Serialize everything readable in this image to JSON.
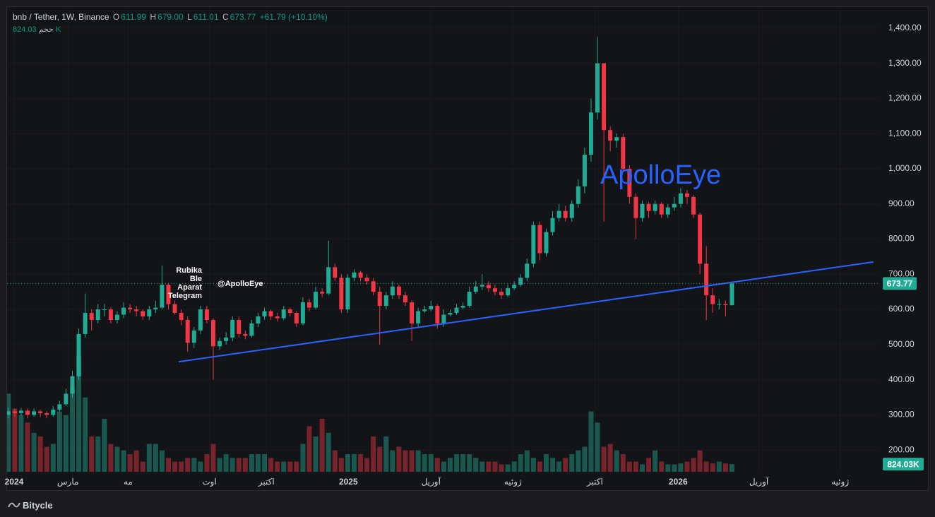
{
  "chart_data": {
    "type": "candlestick",
    "title": "bnb / Tether, 1W, Binance",
    "ohlc_letters": [
      "O",
      "H",
      "L",
      "C"
    ],
    "ohlc_labels": [
      "611.99",
      "679.00",
      "611.01",
      "673.77"
    ],
    "change_label": "+61.79 (+10.10%)",
    "volume_name": "حجم",
    "volume_header_label": "824.03 K",
    "volume_axis_label": "824.03K",
    "watermark": "ApolloEye",
    "annotations": [
      "Rubika",
      "Ble",
      "Aparat",
      "Telegram"
    ],
    "handle": "@ApolloEye",
    "brand": "Bitycle",
    "up_color": "#22ab94",
    "down_color": "#f23645",
    "trend_color": "#2962ff",
    "xlim": [
      -0.2,
      136
    ],
    "ylim": [
      138,
      1460
    ],
    "volume_lim": [
      0,
      50000
    ],
    "xticks": [
      {
        "value": 0.9,
        "label": "2024"
      },
      {
        "value": 9.3,
        "label": "مارس"
      },
      {
        "value": 18.7,
        "label": "مه"
      },
      {
        "value": 31.4,
        "label": "اوت"
      },
      {
        "value": 40.3,
        "label": "اکتبر"
      },
      {
        "value": 53.1,
        "label": "2025"
      },
      {
        "value": 66.0,
        "label": "آوریل"
      },
      {
        "value": 78.8,
        "label": "ژوئیه"
      },
      {
        "value": 91.6,
        "label": "اکتبر"
      },
      {
        "value": 104.6,
        "label": "2026"
      },
      {
        "value": 117.2,
        "label": "آوریل"
      },
      {
        "value": 129.9,
        "label": "ژوئیه"
      }
    ],
    "yticks": [
      {
        "value": 200,
        "label": "200.00"
      },
      {
        "value": 300,
        "label": "300.00"
      },
      {
        "value": 400,
        "label": "400.00"
      },
      {
        "value": 500,
        "label": "500.00"
      },
      {
        "value": 600,
        "label": "600.00"
      },
      {
        "value": 700,
        "label": "700.00"
      },
      {
        "value": 800,
        "label": "800.00"
      },
      {
        "value": 900,
        "label": "900.00"
      },
      {
        "value": 1000,
        "label": "1,000.00"
      },
      {
        "value": 1100,
        "label": "1,100.00"
      },
      {
        "value": 1200,
        "label": "1,200.00"
      },
      {
        "value": 1300,
        "label": "1,300.00"
      },
      {
        "value": 1400,
        "label": "1,400.00"
      }
    ],
    "open": [
      300,
      310,
      305,
      312,
      300,
      310,
      305,
      300,
      315,
      330,
      360,
      410,
      530,
      590,
      570,
      600,
      600,
      570,
      585,
      605,
      600,
      595,
      580,
      600,
      605,
      670,
      615,
      590,
      570,
      505,
      540,
      600,
      570,
      495,
      510,
      520,
      570,
      530,
      525,
      560,
      580,
      595,
      580,
      575,
      600,
      590,
      560,
      620,
      605,
      650,
      645,
      720,
      690,
      600,
      690,
      705,
      690,
      680,
      650,
      610,
      640,
      665,
      640,
      620,
      560,
      595,
      600,
      610,
      560,
      585,
      590,
      605,
      610,
      650,
      665,
      670,
      660,
      650,
      640,
      660,
      670,
      690,
      730,
      840,
      760,
      820,
      860,
      880,
      860,
      900,
      950,
      1040,
      1160,
      1300,
      1110,
      1080,
      1090,
      1000,
      920,
      860,
      900,
      880,
      900,
      870,
      890,
      900,
      930,
      920,
      870,
      730,
      640,
      615,
      615,
      611.99
    ],
    "high": [
      320,
      318,
      320,
      318,
      318,
      315,
      310,
      325,
      340,
      375,
      425,
      545,
      645,
      600,
      615,
      615,
      605,
      595,
      620,
      615,
      610,
      600,
      610,
      625,
      725,
      675,
      625,
      600,
      580,
      550,
      610,
      610,
      575,
      520,
      535,
      580,
      580,
      540,
      570,
      590,
      605,
      600,
      590,
      610,
      605,
      595,
      635,
      630,
      665,
      660,
      795,
      730,
      700,
      700,
      715,
      710,
      700,
      690,
      665,
      650,
      680,
      670,
      650,
      625,
      605,
      610,
      625,
      615,
      600,
      600,
      615,
      620,
      665,
      680,
      700,
      680,
      670,
      660,
      670,
      680,
      700,
      745,
      850,
      850,
      830,
      880,
      900,
      895,
      910,
      970,
      1060,
      1200,
      1375,
      1300,
      1120,
      1100,
      1100,
      1010,
      930,
      910,
      905,
      910,
      905,
      900,
      920,
      945,
      940,
      925,
      875,
      780,
      660,
      630,
      625,
      679
    ],
    "low": [
      290,
      295,
      298,
      290,
      295,
      295,
      290,
      295,
      310,
      325,
      350,
      400,
      520,
      540,
      560,
      580,
      560,
      560,
      575,
      590,
      580,
      570,
      570,
      590,
      600,
      600,
      585,
      555,
      480,
      490,
      530,
      560,
      400,
      485,
      500,
      510,
      520,
      515,
      520,
      550,
      570,
      570,
      565,
      570,
      580,
      550,
      555,
      595,
      600,
      635,
      640,
      680,
      590,
      590,
      680,
      680,
      670,
      640,
      500,
      600,
      630,
      630,
      610,
      510,
      550,
      590,
      595,
      545,
      550,
      580,
      585,
      600,
      605,
      645,
      655,
      650,
      640,
      630,
      635,
      655,
      665,
      680,
      720,
      740,
      750,
      810,
      850,
      850,
      850,
      890,
      930,
      1020,
      1140,
      850,
      1050,
      1060,
      990,
      900,
      800,
      850,
      860,
      870,
      860,
      860,
      880,
      890,
      900,
      860,
      700,
      570,
      590,
      600,
      580,
      611.01
    ],
    "close": [
      310,
      305,
      312,
      300,
      310,
      305,
      300,
      315,
      330,
      360,
      410,
      530,
      590,
      570,
      600,
      600,
      570,
      585,
      605,
      600,
      595,
      580,
      600,
      605,
      670,
      615,
      590,
      570,
      505,
      540,
      600,
      570,
      495,
      510,
      520,
      570,
      530,
      525,
      560,
      580,
      595,
      580,
      575,
      600,
      590,
      560,
      620,
      605,
      650,
      645,
      720,
      690,
      600,
      690,
      705,
      690,
      680,
      650,
      610,
      640,
      665,
      640,
      620,
      560,
      595,
      600,
      610,
      560,
      585,
      590,
      605,
      610,
      650,
      665,
      670,
      660,
      650,
      640,
      660,
      670,
      690,
      730,
      840,
      760,
      820,
      860,
      880,
      860,
      900,
      950,
      1040,
      1160,
      1300,
      1110,
      1080,
      1090,
      1000,
      920,
      860,
      900,
      880,
      900,
      870,
      890,
      900,
      930,
      920,
      870,
      730,
      640,
      615,
      615,
      611.99,
      673.77
    ],
    "volume": [
      8400,
      6800,
      6100,
      5300,
      4200,
      3800,
      2700,
      3000,
      6500,
      6100,
      9100,
      12500,
      8000,
      3800,
      3800,
      5700,
      3000,
      2700,
      2300,
      1900,
      2300,
      1100,
      3000,
      3000,
      2300,
      1500,
      1100,
      1100,
      1500,
      1500,
      1100,
      1900,
      3000,
      1500,
      1900,
      1500,
      1500,
      1500,
      1900,
      1900,
      1900,
      1500,
      1100,
      1100,
      1100,
      1100,
      3000,
      4900,
      3800,
      5700,
      4200,
      2300,
      1500,
      1900,
      1900,
      1900,
      1500,
      3800,
      2700,
      3800,
      2300,
      2700,
      2300,
      2300,
      2300,
      1900,
      1900,
      1500,
      1100,
      1500,
      1900,
      1900,
      1900,
      1500,
      1100,
      1100,
      1100,
      800,
      800,
      1100,
      1900,
      2300,
      1500,
      1100,
      1900,
      1500,
      1100,
      1500,
      1900,
      2300,
      2700,
      6500,
      5300,
      2700,
      3000,
      2300,
      1900,
      1100,
      1100,
      800,
      1500,
      2300,
      1100,
      800,
      800,
      900,
      1100,
      1500,
      2300,
      1100,
      900,
      1100,
      900,
      824.03
    ],
    "trendline": {
      "x": [
        26.6,
        135.1
      ],
      "y": [
        451,
        735
      ]
    }
  }
}
